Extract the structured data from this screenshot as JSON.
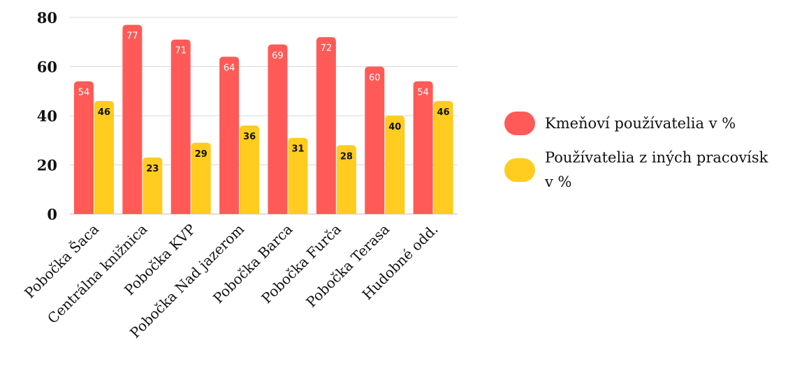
{
  "chart_data": {
    "type": "bar",
    "categories": [
      "Pobočka Šaca",
      "Centrálna knižnica",
      "Pobočka KVP",
      "Pobočka Nad jazerom",
      "Pobočka Barca",
      "Pobočka Furča",
      "Pobočka Terasa",
      "Hudobné odd."
    ],
    "series": [
      {
        "name": "Kmeňoví používatelia v %",
        "values": [
          54,
          77,
          71,
          64,
          69,
          72,
          60,
          54
        ],
        "color": "#ff5a57"
      },
      {
        "name": "Používatelia z iných pracovísk v %",
        "values": [
          46,
          23,
          29,
          36,
          31,
          28,
          40,
          46
        ],
        "color": "#ffcc1f"
      }
    ],
    "yticks": [
      "0",
      "20",
      "40",
      "60",
      "80"
    ],
    "ylim": [
      0,
      80
    ],
    "grid": true,
    "legend_position": "right",
    "title": "",
    "xlabel": "",
    "ylabel": ""
  }
}
